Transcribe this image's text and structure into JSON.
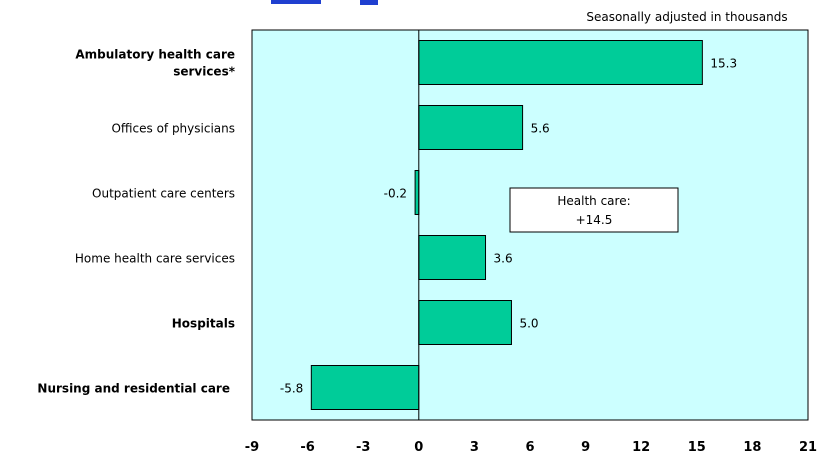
{
  "chart_data": {
    "type": "bar",
    "orientation": "horizontal",
    "subtitle": "Seasonally adjusted in thousands",
    "categories": [
      "Ambulatory health care services*",
      "Offices of physicians",
      "Outpatient care centers",
      "Home health care services",
      "Hospitals",
      "Nursing and residential care"
    ],
    "category_bold": [
      true,
      false,
      false,
      false,
      true,
      true
    ],
    "values": [
      15.3,
      5.6,
      -0.2,
      3.6,
      5.0,
      -5.8
    ],
    "value_labels": [
      "15.3",
      "5.6",
      "-0.2",
      "3.6",
      "5.0",
      "-5.8"
    ],
    "xlim": [
      -9,
      21
    ],
    "xticks": [
      -9,
      -6,
      -3,
      0,
      3,
      6,
      9,
      12,
      15,
      18,
      21
    ],
    "xtick_labels": [
      "-9",
      "-6",
      "-3",
      "0",
      "3",
      "6",
      "9",
      "12",
      "15",
      "18",
      "21"
    ],
    "annotation": {
      "line1": "Health care:",
      "line2": "+14.5"
    },
    "colors": {
      "plot_bg": "#ccffff",
      "bar": "#00cc99",
      "title": "#1f3fd0"
    },
    "grid": false
  }
}
